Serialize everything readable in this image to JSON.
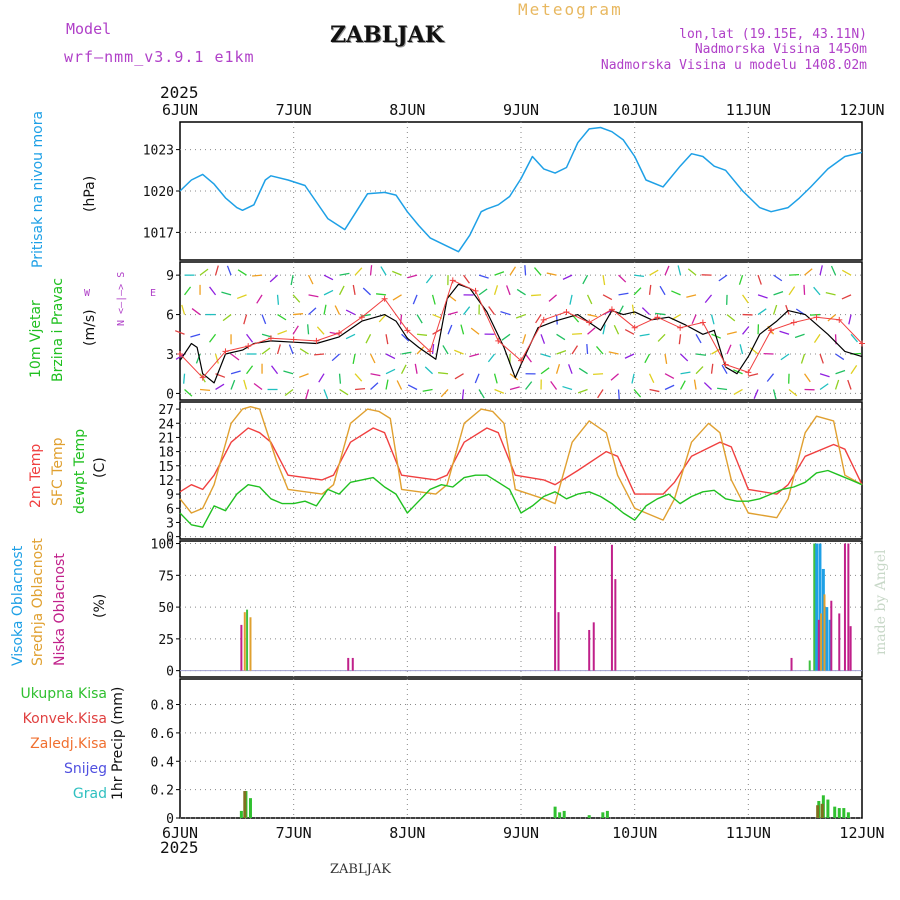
{
  "header": {
    "model_label": "Model",
    "model_name": "wrf–nmm_v3.9.1  e1km",
    "location": "ZABLJAK",
    "meteogram": "Meteogram",
    "lonlat": "lon,lat (19.15E, 43.11N)",
    "elevation": "Nadmorska Visina 1450m",
    "model_elevation": "Nadmorska Visina u modelu 1408.02m",
    "year": "2025",
    "footer_location": "ZABLJAK",
    "credit": "made by Angel"
  },
  "colors": {
    "pressure": "#1ea0e6",
    "t2m": "#f04040",
    "sfc": "#e0a030",
    "dewpt": "#20c020",
    "high_cloud": "#1ea0e6",
    "mid_cloud": "#e0a030",
    "low_cloud": "#c0208a",
    "total_precip": "#30c030",
    "conv_precip": "#e04040",
    "ice_precip": "#f07030",
    "snow": "#5050e0",
    "hail": "#30c0c0"
  },
  "chart_data": [
    {
      "type": "line",
      "panel": "pressure",
      "ylabel_lines": [
        "Pritisak na nivou mora",
        "(hPa)"
      ],
      "x_ticks": [
        "6JUN",
        "7JUN",
        "8JUN",
        "9JUN",
        "10JUN",
        "11JUN",
        "12JUN"
      ],
      "y_ticks": [
        "1017",
        "1020",
        "1023"
      ],
      "ylim": [
        1015,
        1025
      ],
      "x_unit": "days from 6JUN 00UTC",
      "grid": true,
      "series": [
        {
          "values_x": [
            0,
            0.1,
            0.2,
            0.3,
            0.4,
            0.5,
            0.55,
            0.65,
            0.75,
            0.8,
            0.95,
            1.1,
            1.2,
            1.3,
            1.45,
            1.55,
            1.65,
            1.8,
            1.9,
            2.0,
            2.1,
            2.2,
            2.35,
            2.45,
            2.55,
            2.65,
            2.7,
            2.8,
            2.9,
            3.0,
            3.1,
            3.2,
            3.3,
            3.4,
            3.5,
            3.6,
            3.7,
            3.8,
            3.9,
            4.0,
            4.1,
            4.25,
            4.4,
            4.5,
            4.6,
            4.7,
            4.8,
            4.95,
            5.1,
            5.2,
            5.35,
            5.45,
            5.55,
            5.7,
            5.85,
            6.0
          ],
          "values_y": [
            1020.0,
            1020.8,
            1021.2,
            1020.5,
            1019.5,
            1018.8,
            1018.6,
            1019.0,
            1020.8,
            1021.1,
            1020.8,
            1020.4,
            1019.2,
            1018.0,
            1017.2,
            1018.5,
            1019.8,
            1019.9,
            1019.7,
            1018.5,
            1017.5,
            1016.6,
            1016.0,
            1015.6,
            1016.8,
            1018.5,
            1018.7,
            1019.0,
            1019.6,
            1020.9,
            1022.5,
            1021.6,
            1021.3,
            1021.7,
            1023.5,
            1024.5,
            1024.6,
            1024.3,
            1023.7,
            1022.5,
            1020.8,
            1020.3,
            1021.8,
            1022.7,
            1022.5,
            1021.8,
            1021.5,
            1020.0,
            1018.8,
            1018.5,
            1018.8,
            1019.5,
            1020.3,
            1021.6,
            1022.5,
            1022.8
          ]
        }
      ]
    },
    {
      "type": "line",
      "panel": "wind",
      "ylabel_lines": [
        "10m Vjetar",
        "Brzina i Pravac",
        "(m/s)"
      ],
      "compass": [
        "N",
        "<–|–>",
        "S",
        "W",
        "E"
      ],
      "y_ticks": [
        "0",
        "3",
        "6",
        "9"
      ],
      "ylim": [
        -0.5,
        10
      ],
      "x_unit": "days from 6JUN 00UTC",
      "grid": true,
      "series": [
        {
          "name": "speed",
          "color": "#000000",
          "values_x": [
            0,
            0.1,
            0.15,
            0.2,
            0.3,
            0.4,
            0.55,
            0.65,
            0.8,
            1.0,
            1.2,
            1.4,
            1.6,
            1.8,
            1.9,
            2.0,
            2.1,
            2.25,
            2.35,
            2.45,
            2.55,
            2.7,
            2.85,
            2.95,
            3.0,
            3.15,
            3.3,
            3.5,
            3.7,
            3.8,
            3.9,
            4.0,
            4.15,
            4.3,
            4.45,
            4.6,
            4.7,
            4.8,
            4.9,
            5.0,
            5.1,
            5.25,
            5.35,
            5.5,
            5.7,
            5.85,
            6.0
          ],
          "values_y": [
            2.5,
            3.8,
            3.5,
            1.5,
            0.8,
            3.0,
            3.3,
            3.8,
            4.0,
            3.9,
            3.8,
            4.3,
            5.5,
            6.0,
            5.5,
            4.2,
            3.5,
            2.6,
            7.2,
            8.3,
            8.0,
            6.2,
            3.5,
            1.2,
            2.2,
            5.0,
            5.5,
            6.0,
            4.8,
            6.3,
            6.0,
            6.2,
            5.6,
            5.8,
            5.2,
            4.5,
            4.8,
            2.0,
            1.5,
            2.8,
            4.5,
            5.5,
            6.3,
            6.0,
            4.5,
            3.2,
            2.8
          ]
        },
        {
          "name": "gust",
          "color": "#f04040",
          "values_x": [
            0,
            0.2,
            0.4,
            0.6,
            0.8,
            1.0,
            1.2,
            1.4,
            1.6,
            1.8,
            2.0,
            2.2,
            2.4,
            2.6,
            2.8,
            3.0,
            3.2,
            3.4,
            3.6,
            3.8,
            4.0,
            4.2,
            4.4,
            4.6,
            4.8,
            5.0,
            5.2,
            5.4,
            5.6,
            5.8,
            6.0
          ],
          "values_y": [
            3.0,
            1.2,
            3.2,
            3.6,
            4.2,
            4.1,
            4.0,
            4.6,
            5.8,
            7.2,
            4.8,
            3.2,
            8.6,
            7.8,
            4.0,
            2.5,
            5.6,
            6.2,
            5.4,
            6.4,
            5.0,
            5.8,
            5.0,
            5.4,
            2.2,
            1.6,
            4.8,
            5.4,
            5.8,
            5.6,
            3.8
          ]
        }
      ]
    },
    {
      "type": "line",
      "panel": "temperature",
      "ylabel_lines": [
        "2m Temp",
        "SFC Temp",
        "dewpt Temp",
        "(C)"
      ],
      "y_ticks": [
        "0",
        "3",
        "6",
        "9",
        "12",
        "15",
        "18",
        "21",
        "24",
        "27"
      ],
      "ylim": [
        -0.5,
        28.5
      ],
      "x_unit": "days from 6JUN 00UTC",
      "grid": true,
      "series": [
        {
          "name": "2m Temp",
          "values_x": [
            0,
            0.1,
            0.2,
            0.3,
            0.45,
            0.6,
            0.7,
            0.8,
            0.95,
            1.25,
            1.35,
            1.5,
            1.7,
            1.8,
            1.95,
            2.25,
            2.35,
            2.5,
            2.7,
            2.8,
            2.95,
            3.2,
            3.3,
            3.5,
            3.75,
            3.85,
            4.0,
            4.25,
            4.35,
            4.5,
            4.75,
            4.85,
            5.0,
            5.25,
            5.35,
            5.5,
            5.75,
            5.85,
            6.0
          ],
          "values_y": [
            9.5,
            11.0,
            10.0,
            13.0,
            20.0,
            23.0,
            22.0,
            20.0,
            13.0,
            12.0,
            13.0,
            20.0,
            23.0,
            22.0,
            13.0,
            12.0,
            13.0,
            20.0,
            23.0,
            22.0,
            13.0,
            12.0,
            11.0,
            14.0,
            18.0,
            17.0,
            9.0,
            9.0,
            11.5,
            17.0,
            20.0,
            19.0,
            10.0,
            9.0,
            11.0,
            17.0,
            19.5,
            18.5,
            11.0
          ]
        },
        {
          "name": "SFC Temp",
          "values_x": [
            0,
            0.1,
            0.2,
            0.3,
            0.45,
            0.55,
            0.62,
            0.7,
            0.85,
            0.95,
            1.25,
            1.35,
            1.5,
            1.65,
            1.75,
            1.85,
            1.95,
            2.25,
            2.35,
            2.5,
            2.65,
            2.75,
            2.85,
            2.95,
            3.2,
            3.3,
            3.45,
            3.6,
            3.75,
            3.85,
            4.0,
            4.25,
            4.35,
            4.5,
            4.65,
            4.75,
            4.85,
            5.0,
            5.25,
            5.35,
            5.5,
            5.6,
            5.75,
            5.85,
            6.0
          ],
          "values_y": [
            8.0,
            5.0,
            6.0,
            11.0,
            24.0,
            27.0,
            27.5,
            27.0,
            16.0,
            10.0,
            9.0,
            11.0,
            24.0,
            27.0,
            26.5,
            25.0,
            10.0,
            9.0,
            11.0,
            24.0,
            27.0,
            26.5,
            24.0,
            10.0,
            8.0,
            7.0,
            20.0,
            24.5,
            22.0,
            13.0,
            6.0,
            3.5,
            8.0,
            20.0,
            24.0,
            22.0,
            12.0,
            5.0,
            4.0,
            8.0,
            22.0,
            25.5,
            24.5,
            13.0,
            11.0
          ]
        },
        {
          "name": "dewpt Temp",
          "values_x": [
            0,
            0.1,
            0.2,
            0.3,
            0.4,
            0.5,
            0.6,
            0.7,
            0.8,
            0.9,
            1.0,
            1.1,
            1.2,
            1.3,
            1.4,
            1.5,
            1.6,
            1.7,
            1.8,
            1.9,
            2.0,
            2.1,
            2.2,
            2.3,
            2.4,
            2.5,
            2.6,
            2.7,
            2.8,
            2.9,
            3.0,
            3.1,
            3.2,
            3.3,
            3.4,
            3.5,
            3.6,
            3.7,
            3.8,
            3.9,
            4.0,
            4.1,
            4.2,
            4.3,
            4.4,
            4.5,
            4.6,
            4.7,
            4.8,
            4.9,
            5.0,
            5.1,
            5.2,
            5.3,
            5.4,
            5.5,
            5.6,
            5.7,
            5.8,
            5.9,
            6.0
          ],
          "values_y": [
            5.0,
            2.5,
            2.0,
            6.5,
            5.5,
            9.0,
            11.0,
            10.5,
            8.0,
            7.0,
            7.0,
            7.5,
            6.5,
            10.0,
            9.0,
            11.5,
            12.0,
            12.5,
            10.5,
            9.0,
            5.0,
            7.5,
            10.0,
            11.0,
            10.5,
            12.5,
            13.0,
            13.0,
            11.5,
            10.0,
            5.0,
            6.5,
            8.5,
            9.5,
            8.0,
            9.0,
            9.5,
            8.5,
            7.0,
            5.0,
            3.5,
            6.5,
            8.0,
            9.0,
            7.0,
            8.5,
            9.5,
            9.8,
            8.0,
            7.5,
            7.5,
            8.0,
            9.0,
            10.0,
            10.5,
            11.5,
            13.5,
            14.0,
            13.0,
            12.0,
            11.0
          ]
        }
      ]
    },
    {
      "type": "bar",
      "panel": "cloud",
      "ylabel_lines": [
        "Visoka Oblacnost",
        "Srednja Oblacnost",
        "Niska Oblacnost",
        "(%)"
      ],
      "y_ticks": [
        "0",
        "25",
        "50",
        "75",
        "100"
      ],
      "ylim": [
        -5,
        102
      ],
      "x_unit": "days from 6JUN 00UTC",
      "grid": true,
      "series": [
        {
          "name": "Visoka Oblacnost",
          "bars": [
            [
              5.6,
              100
            ],
            [
              5.63,
              100
            ],
            [
              5.66,
              80
            ],
            [
              5.69,
              50
            ],
            [
              5.72,
              40
            ]
          ]
        },
        {
          "name": "Srednja Oblacnost",
          "bars": [
            [
              0.57,
              46
            ],
            [
              0.62,
              42
            ],
            [
              5.64,
              45
            ],
            [
              5.67,
              60
            ]
          ]
        },
        {
          "name": "Niska Oblacnost",
          "bars": [
            [
              0.54,
              36
            ],
            [
              1.48,
              10
            ],
            [
              1.52,
              10
            ],
            [
              3.3,
              98
            ],
            [
              3.33,
              46
            ],
            [
              3.6,
              32
            ],
            [
              3.64,
              38
            ],
            [
              3.8,
              99
            ],
            [
              3.83,
              72
            ],
            [
              5.38,
              10
            ],
            [
              5.62,
              40
            ],
            [
              5.73,
              55
            ],
            [
              5.8,
              45
            ],
            [
              5.85,
              100
            ],
            [
              5.88,
              100
            ],
            [
              5.9,
              35
            ]
          ]
        },
        {
          "name": "Green",
          "bars": [
            [
              0.59,
              48
            ],
            [
              5.54,
              8
            ],
            [
              5.58,
              100
            ]
          ]
        }
      ]
    },
    {
      "type": "bar",
      "panel": "precip",
      "ylabel_lines": [
        "1hr Precip (mm)"
      ],
      "legend": [
        "Ukupna Kisa",
        "Konvek.Kisa",
        "Zaledj.Kisa",
        "Snijeg",
        "Grad"
      ],
      "y_ticks": [
        "0",
        "0.2",
        "0.4",
        "0.6",
        "0.8"
      ],
      "ylim": [
        0,
        0.98
      ],
      "x_unit": "days from 6JUN 00UTC",
      "grid": true,
      "series": [
        {
          "name": "Ukupna Kisa",
          "bars": [
            [
              0.54,
              0.05
            ],
            [
              0.58,
              0.19
            ],
            [
              0.62,
              0.14
            ],
            [
              3.3,
              0.08
            ],
            [
              3.34,
              0.04
            ],
            [
              3.38,
              0.05
            ],
            [
              3.6,
              0.02
            ],
            [
              3.72,
              0.04
            ],
            [
              3.76,
              0.05
            ],
            [
              5.62,
              0.12
            ],
            [
              5.66,
              0.16
            ],
            [
              5.7,
              0.13
            ],
            [
              5.76,
              0.08
            ],
            [
              5.8,
              0.07
            ],
            [
              5.84,
              0.07
            ],
            [
              5.88,
              0.04
            ]
          ]
        },
        {
          "name": "Konvek.Kisa",
          "bars": [
            [
              0.57,
              0.19
            ],
            [
              5.61,
              0.09
            ],
            [
              5.65,
              0.1
            ]
          ]
        }
      ]
    }
  ]
}
